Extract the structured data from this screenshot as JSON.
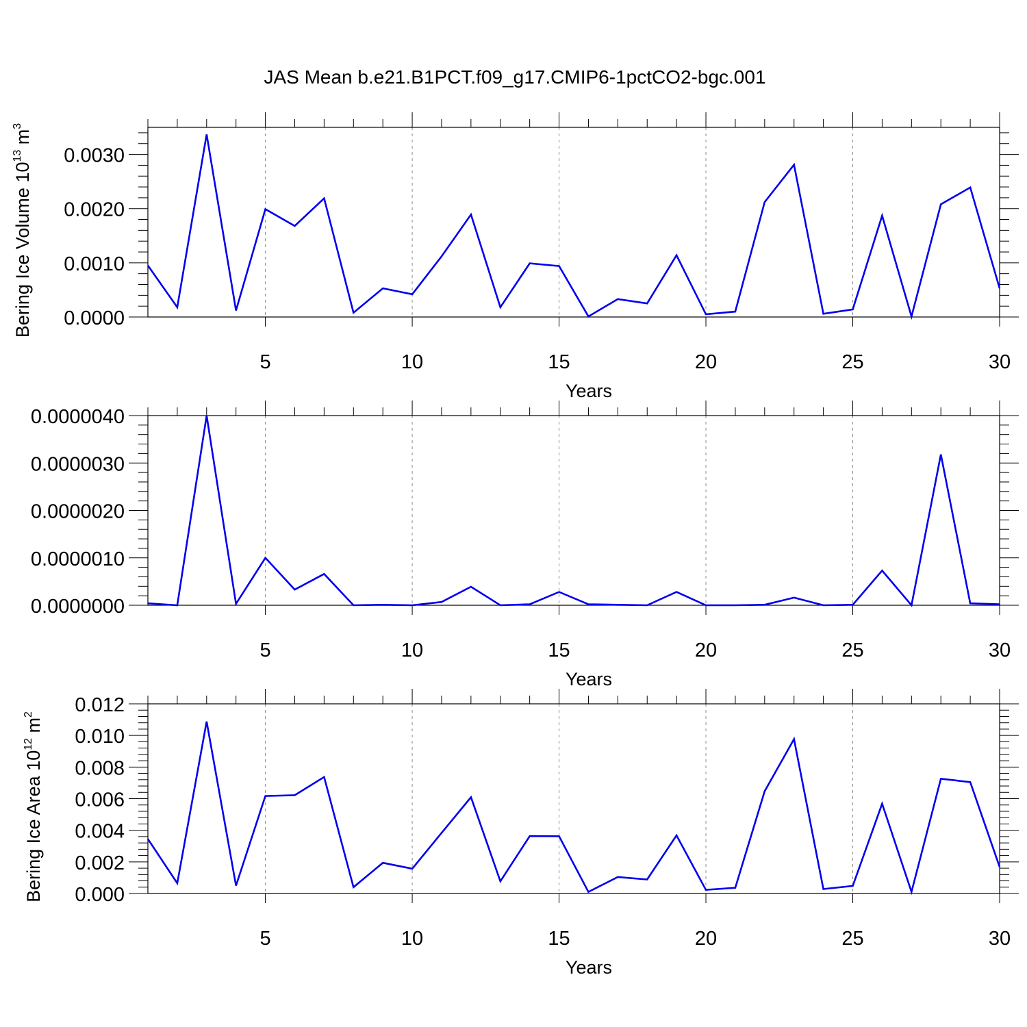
{
  "figure": {
    "title": "JAS Mean b.e21.B1PCT.f09_g17.CMIP6-1pctCO2-bgc.001",
    "line_color": "#0000ee",
    "grid_color": "#888888"
  },
  "chart_data": [
    {
      "type": "line",
      "ylabel": "Bering Ice Volume 10",
      "ylabel_exponent": "13",
      "ylabel_unit": " m",
      "ylabel_unit_exponent": "3",
      "xlabel": "Years",
      "xlim": [
        1,
        30
      ],
      "ylim": [
        0,
        0.0035
      ],
      "xticks": [
        5,
        10,
        15,
        20,
        25,
        30
      ],
      "yticks": [
        0,
        0.001,
        0.002,
        0.003
      ],
      "ytick_labels": [
        "0.0000",
        "0.0010",
        "0.0020",
        "0.0030"
      ],
      "grid": "vertical dashed at major x ticks",
      "series": [
        {
          "x": [
            1,
            2,
            3,
            4,
            5,
            6,
            7,
            8,
            9,
            10,
            11,
            12,
            13,
            14,
            15,
            16,
            17,
            18,
            19,
            20,
            21,
            22,
            23,
            24,
            25,
            26,
            27,
            28,
            29,
            30
          ],
          "values": [
            0.00095,
            0.00018,
            0.00337,
            0.00012,
            0.00199,
            0.00168,
            0.00219,
            8e-05,
            0.00053,
            0.00042,
            0.00112,
            0.00189,
            0.00018,
            0.00099,
            0.00094,
            1e-05,
            0.00033,
            0.00025,
            0.00114,
            5e-05,
            0.0001,
            0.00212,
            0.00281,
            6e-05,
            0.00014,
            0.00187,
            1e-05,
            0.00208,
            0.00239,
            0.00053
          ]
        }
      ]
    },
    {
      "type": "line",
      "ylabel": "",
      "xlabel": "Years",
      "xlim": [
        1,
        30
      ],
      "ylim": [
        0,
        4e-06
      ],
      "xticks": [
        5,
        10,
        15,
        20,
        25,
        30
      ],
      "yticks": [
        0,
        1e-06,
        2e-06,
        3e-06,
        4e-06
      ],
      "ytick_labels": [
        "0.0000000",
        "0.0000010",
        "0.0000020",
        "0.0000030",
        "0.0000040"
      ],
      "grid": "vertical dashed at major x ticks",
      "series": [
        {
          "x": [
            1,
            2,
            3,
            4,
            5,
            6,
            7,
            8,
            9,
            10,
            11,
            12,
            13,
            14,
            15,
            16,
            17,
            18,
            19,
            20,
            21,
            22,
            23,
            24,
            25,
            26,
            27,
            28,
            29,
            30
          ],
          "values": [
            4e-08,
            0.0,
            4e-06,
            3e-08,
            1e-06,
            3.3e-07,
            6.6e-07,
            0.0,
            1e-08,
            0.0,
            7e-08,
            3.9e-07,
            0.0,
            2e-08,
            2.8e-07,
            2e-08,
            1e-08,
            0.0,
            2.8e-07,
            0.0,
            0.0,
            1e-08,
            1.6e-07,
            0.0,
            1e-08,
            7.3e-07,
            0.0,
            3.18e-06,
            4e-08,
            2e-08
          ]
        }
      ]
    },
    {
      "type": "line",
      "ylabel": "Bering Ice Area 10",
      "ylabel_exponent": "12",
      "ylabel_unit": " m",
      "ylabel_unit_exponent": "2",
      "xlabel": "Years",
      "xlim": [
        1,
        30
      ],
      "ylim": [
        0,
        0.012
      ],
      "xticks": [
        5,
        10,
        15,
        20,
        25,
        30
      ],
      "yticks": [
        0,
        0.002,
        0.004,
        0.006,
        0.008,
        0.01,
        0.012
      ],
      "ytick_labels": [
        "0.000",
        "0.002",
        "0.004",
        "0.006",
        "0.008",
        "0.010",
        "0.012"
      ],
      "grid": "vertical dashed at major x ticks",
      "series": [
        {
          "x": [
            1,
            2,
            3,
            4,
            5,
            6,
            7,
            8,
            9,
            10,
            11,
            12,
            13,
            14,
            15,
            16,
            17,
            18,
            19,
            20,
            21,
            22,
            23,
            24,
            25,
            26,
            27,
            28,
            29,
            30
          ],
          "values": [
            0.00345,
            0.00065,
            0.01088,
            0.0005,
            0.00617,
            0.00622,
            0.00737,
            0.0004,
            0.00194,
            0.00157,
            0.00384,
            0.00609,
            0.00077,
            0.00363,
            0.00362,
            0.0001,
            0.00104,
            0.00089,
            0.00368,
            0.00023,
            0.00036,
            0.00647,
            0.00977,
            0.00028,
            0.00048,
            0.00568,
            0.0001,
            0.00726,
            0.00705,
            0.00168
          ]
        }
      ]
    }
  ]
}
